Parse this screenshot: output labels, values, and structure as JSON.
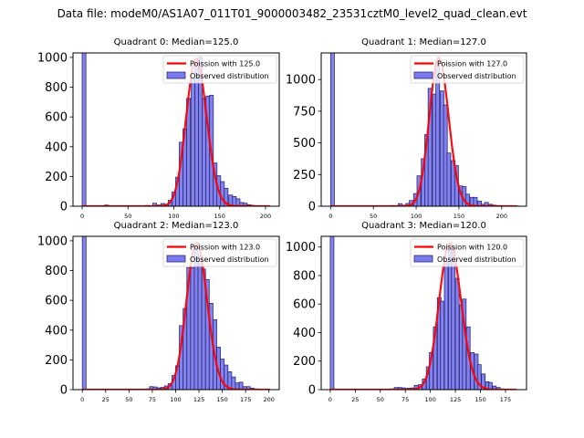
{
  "figure": {
    "suptitle": "Data file: modeM0/AS1A07_011T01_9000003482_23531cztM0_level2_quad_clean.evt"
  },
  "chart_data": [
    {
      "type": "bar",
      "title": "Quadrant 0: Median=125.0",
      "xlabel": "",
      "ylabel": "",
      "xlim": [
        -10,
        215
      ],
      "ylim": [
        0,
        1030
      ],
      "xticks": [
        0,
        50,
        100,
        150,
        200
      ],
      "yticks": [
        0,
        200,
        400,
        600,
        800,
        1000
      ],
      "bin_width": 4.1,
      "bins_x": [
        0,
        20.5,
        24.6,
        69,
        77,
        82,
        86,
        90,
        94,
        98,
        102,
        106,
        110,
        114,
        119,
        123,
        127,
        131,
        135,
        139,
        143,
        147,
        151,
        155,
        160,
        164,
        168,
        172,
        176,
        180,
        184,
        188,
        192,
        196,
        200
      ],
      "counts": [
        1030,
        3,
        8,
        5,
        20,
        8,
        18,
        12,
        40,
        95,
        195,
        430,
        520,
        725,
        855,
        960,
        1000,
        725,
        740,
        745,
        290,
        205,
        165,
        120,
        75,
        65,
        50,
        25,
        20,
        10,
        6,
        4,
        3,
        2,
        2
      ],
      "poisson": {
        "label": "Poission with 125.0",
        "mean": 125.0,
        "peak": 990,
        "x_range": [
          0,
          205
        ]
      },
      "legend": {
        "entries": [
          "Poission with 125.0",
          "Observed distribution"
        ],
        "placement": "upper right"
      }
    },
    {
      "type": "bar",
      "title": "Quadrant 1: Median=127.0",
      "xlabel": "",
      "ylabel": "",
      "xlim": [
        -11,
        229
      ],
      "ylim": [
        0,
        1210
      ],
      "xticks": [
        0,
        50,
        100,
        150,
        200
      ],
      "yticks": [
        0,
        250,
        500,
        750,
        1000
      ],
      "bin_width": 4.4,
      "bins_x": [
        0,
        66,
        70,
        79,
        84,
        88,
        92,
        97,
        101,
        106,
        110,
        114,
        119,
        123,
        128,
        132,
        136,
        141,
        145,
        150,
        154,
        158,
        163,
        167,
        172,
        176,
        180,
        185,
        189,
        194,
        198,
        202,
        207,
        211,
        216
      ],
      "counts": [
        1210,
        3,
        5,
        20,
        8,
        22,
        45,
        100,
        240,
        375,
        565,
        930,
        885,
        1150,
        910,
        800,
        420,
        360,
        320,
        160,
        155,
        95,
        70,
        70,
        40,
        15,
        30,
        15,
        8,
        5,
        4,
        3,
        2,
        2,
        2
      ],
      "poisson": {
        "label": "Poission with 127.0",
        "mean": 127.0,
        "peak": 1170,
        "x_range": [
          0,
          218
        ]
      },
      "legend": {
        "entries": [
          "Poission with 127.0",
          "Observed distribution"
        ],
        "placement": "upper right"
      }
    },
    {
      "type": "bar",
      "title": "Quadrant 2: Median=123.0",
      "xlabel": "",
      "ylabel": "",
      "xlim": [
        -10,
        211
      ],
      "ylim": [
        0,
        1030
      ],
      "xticks": [
        0,
        25,
        50,
        75,
        100,
        125,
        150,
        175,
        200
      ],
      "yticks": [
        0,
        200,
        400,
        600,
        800,
        1000
      ],
      "bin_width": 4.0,
      "bins_x": [
        0,
        20,
        24,
        68,
        72,
        76,
        80,
        84,
        88,
        92,
        96,
        100,
        104,
        108,
        112,
        116,
        120,
        124,
        128,
        132,
        136,
        140,
        144,
        148,
        152,
        156,
        160,
        164,
        168,
        172,
        176,
        180,
        184,
        188,
        192,
        196
      ],
      "counts": [
        1030,
        3,
        3,
        5,
        20,
        18,
        12,
        15,
        25,
        40,
        95,
        160,
        430,
        545,
        820,
        820,
        960,
        890,
        810,
        740,
        580,
        470,
        285,
        205,
        165,
        120,
        85,
        45,
        50,
        20,
        20,
        10,
        5,
        3,
        2,
        2
      ],
      "poisson": {
        "label": "Poission with 123.0",
        "mean": 123.0,
        "peak": 985,
        "x_range": [
          0,
          201
        ]
      },
      "legend": {
        "entries": [
          "Poission with 123.0",
          "Observed distribution"
        ],
        "placement": "upper right"
      }
    },
    {
      "type": "bar",
      "title": "Quadrant 3: Median=120.0",
      "xlabel": "",
      "ylabel": "",
      "xlim": [
        -9,
        196
      ],
      "ylim": [
        0,
        1075
      ],
      "xticks": [
        0,
        25,
        50,
        75,
        100,
        125,
        150,
        175
      ],
      "yticks": [
        0,
        200,
        400,
        600,
        800,
        1000
      ],
      "bin_width": 3.7,
      "bins_x": [
        0,
        14,
        22,
        60,
        64,
        68,
        72,
        77,
        81,
        84,
        88,
        92,
        96,
        99,
        103,
        107,
        110,
        114,
        118,
        121,
        125,
        129,
        132,
        136,
        140,
        144,
        147,
        151,
        155,
        158,
        162,
        166,
        170,
        173,
        177,
        181
      ],
      "counts": [
        1075,
        3,
        3,
        5,
        15,
        15,
        12,
        10,
        12,
        30,
        35,
        75,
        160,
        260,
        440,
        645,
        620,
        900,
        1020,
        1000,
        780,
        595,
        635,
        440,
        260,
        250,
        175,
        110,
        55,
        50,
        25,
        15,
        5,
        3,
        2,
        2
      ],
      "poisson": {
        "label": "Poission with 120.0",
        "mean": 120.0,
        "peak": 1025,
        "x_range": [
          0,
          186
        ]
      },
      "legend": {
        "entries": [
          "Poission with 120.0",
          "Observed distribution"
        ],
        "placement": "upper right"
      }
    }
  ],
  "colors": {
    "bar_fill": "#7b7bf0",
    "bar_edge": "#2a2a6e",
    "poisson_line": "#ff0000"
  }
}
